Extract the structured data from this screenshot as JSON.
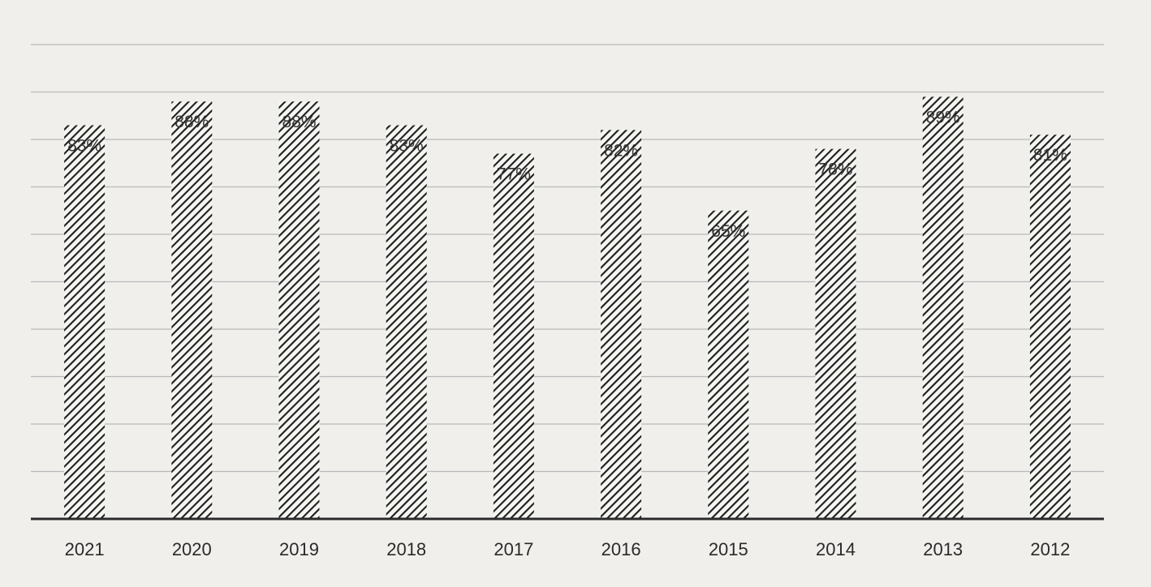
{
  "chart_data": {
    "type": "bar",
    "categories": [
      "2021",
      "2020",
      "2019",
      "2018",
      "2017",
      "2016",
      "2015",
      "2014",
      "2013",
      "2012"
    ],
    "values": [
      83,
      88,
      88,
      83,
      77,
      82,
      65,
      78,
      89,
      81
    ],
    "data_labels": [
      "83%",
      "88%",
      "88%",
      "83%",
      "77%",
      "82%",
      "65%",
      "78%",
      "89%",
      "81%"
    ],
    "title": "",
    "xlabel": "",
    "ylabel": "",
    "ylim": [
      0,
      100
    ],
    "grid": true,
    "legend": "none",
    "bar_fill": "hatched",
    "colors": {
      "bar": "#1e1e1e",
      "background": "#f0efec",
      "grid": "#b9b9b9",
      "axis": "#2b2b2b"
    }
  }
}
